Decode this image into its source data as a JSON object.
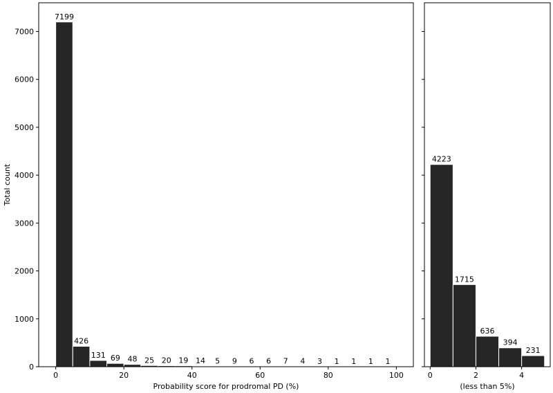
{
  "chart_data": [
    {
      "type": "bar",
      "bin_edges": [
        0,
        5,
        10,
        15,
        20,
        25,
        30,
        35,
        40,
        45,
        50,
        55,
        60,
        65,
        70,
        75,
        80,
        85,
        90,
        95,
        100
      ],
      "values": [
        7199,
        426,
        131,
        69,
        48,
        25,
        20,
        19,
        14,
        5,
        9,
        6,
        6,
        7,
        4,
        3,
        1,
        1,
        1,
        1
      ],
      "data_labels": [
        "7199",
        "426",
        "131",
        "69",
        "48",
        "25",
        "20",
        "19",
        "14",
        "5",
        "9",
        "6",
        "6",
        "7",
        "4",
        "3",
        "1",
        "1",
        "1",
        "1"
      ],
      "xlabel": "Probability score for prodromal PD (%)",
      "ylabel": "Total count",
      "xlim": [
        -5,
        105
      ],
      "ylim": [
        0,
        7600
      ],
      "xticks": [
        0,
        20,
        40,
        60,
        80,
        100
      ],
      "xtick_labels": [
        "0",
        "20",
        "40",
        "60",
        "80",
        "100"
      ],
      "yticks": [
        0,
        1000,
        2000,
        3000,
        4000,
        5000,
        6000,
        7000
      ],
      "ytick_labels": [
        "0",
        "1000",
        "2000",
        "3000",
        "4000",
        "5000",
        "6000",
        "7000"
      ],
      "bar_color": "#262626",
      "edge_color": "#ffffff",
      "grid": false
    },
    {
      "type": "bar",
      "bin_edges": [
        0,
        1,
        2,
        3,
        4,
        5
      ],
      "values": [
        4223,
        1715,
        636,
        394,
        231
      ],
      "data_labels": [
        "4223",
        "1715",
        "636",
        "394",
        "231"
      ],
      "xlabel": "(less than 5%)",
      "ylabel": "",
      "xlim": [
        -0.25,
        5.25
      ],
      "ylim": [
        0,
        7600
      ],
      "xticks": [
        0,
        2,
        4
      ],
      "xtick_labels": [
        "0",
        "2",
        "4"
      ],
      "yticks": [
        0,
        1000,
        2000,
        3000,
        4000,
        5000,
        6000,
        7000
      ],
      "ytick_labels": [],
      "bar_color": "#262626",
      "edge_color": "#ffffff",
      "grid": false
    }
  ]
}
